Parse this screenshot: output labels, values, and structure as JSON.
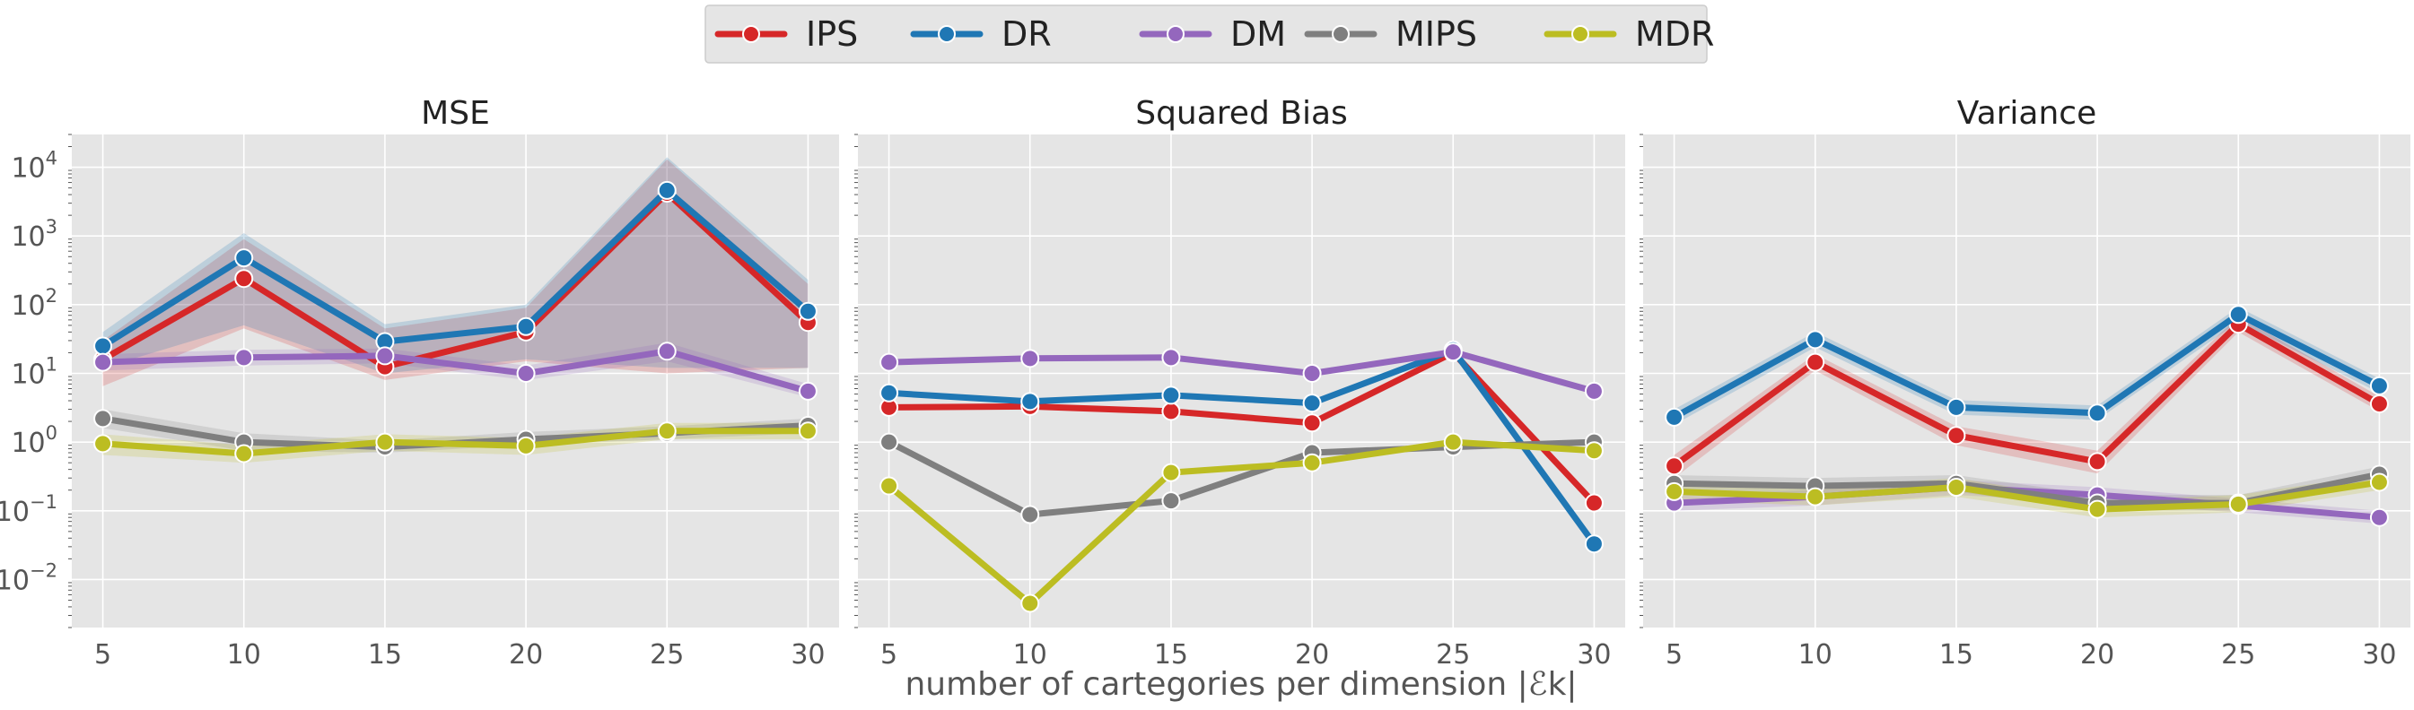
{
  "chart_data": {
    "type": "line",
    "x": [
      5,
      10,
      15,
      20,
      25,
      30
    ],
    "xlabel": "number of cartegories per dimension |ℰk|",
    "ylabel": "",
    "yscale": "log",
    "ylim": [
      0.002,
      30000
    ],
    "legend": {
      "placement": "top-center",
      "entries": [
        "IPS",
        "DR",
        "DM",
        "MIPS",
        "MDR"
      ]
    },
    "colors": {
      "IPS": "#d62728",
      "DR": "#1f77b4",
      "DM": "#9467bd",
      "MIPS": "#7f7f7f",
      "MDR": "#bcbd22",
      "background": "#e5e5e5",
      "grid": "#ffffff"
    },
    "panels": [
      {
        "title": "MSE",
        "ytick_labels": [
          {
            "base": "10",
            "exp": "−2",
            "value": 0.01
          },
          {
            "base": "10",
            "exp": "−1",
            "value": 0.1
          },
          {
            "base": "10",
            "exp": "0",
            "value": 1
          },
          {
            "base": "10",
            "exp": "1",
            "value": 10
          },
          {
            "base": "10",
            "exp": "2",
            "value": 100
          },
          {
            "base": "10",
            "exp": "3",
            "value": 1000
          },
          {
            "base": "10",
            "exp": "4",
            "value": 10000
          }
        ],
        "series": [
          {
            "name": "IPS",
            "values": [
              16,
              240,
              12.5,
              40,
              4200,
              55
            ],
            "lower": [
              6.5,
              45,
              8,
              15,
              10,
              12
            ],
            "upper": [
              30,
              900,
              45,
              90,
              13000,
              200
            ]
          },
          {
            "name": "DR",
            "values": [
              25,
              480,
              29,
              48,
              4600,
              80
            ],
            "lower": [
              12,
              50,
              10,
              16,
              12,
              12
            ],
            "upper": [
              40,
              1100,
              52,
              100,
              14000,
              230
            ]
          },
          {
            "name": "DM",
            "values": [
              14.5,
              17,
              18,
              10,
              21,
              5.5
            ],
            "lower": [
              11,
              13,
              14,
              8,
              15,
              4.5
            ],
            "upper": [
              19,
              22,
              23,
              13,
              28,
              7
            ]
          },
          {
            "name": "MIPS",
            "values": [
              2.2,
              1.0,
              0.85,
              1.1,
              1.35,
              1.75
            ],
            "lower": [
              1.6,
              0.75,
              0.7,
              0.9,
              1.1,
              1.35
            ],
            "upper": [
              3.0,
              1.35,
              1.05,
              1.4,
              1.7,
              2.2
            ]
          },
          {
            "name": "MDR",
            "values": [
              0.95,
              0.68,
              1.0,
              0.88,
              1.45,
              1.45
            ],
            "lower": [
              0.65,
              0.5,
              0.75,
              0.65,
              1.1,
              1.1
            ],
            "upper": [
              1.3,
              0.9,
              1.3,
              1.15,
              1.9,
              1.9
            ]
          }
        ]
      },
      {
        "title": "Squared Bias",
        "ytick_labels": [],
        "series": [
          {
            "name": "IPS",
            "values": [
              3.2,
              3.3,
              2.8,
              1.9,
              20,
              0.13
            ],
            "lower": null,
            "upper": null
          },
          {
            "name": "DR",
            "values": [
              5.2,
              3.9,
              4.8,
              3.7,
              22,
              0.033
            ],
            "lower": null,
            "upper": null
          },
          {
            "name": "DM",
            "values": [
              14.5,
              16.5,
              17,
              10,
              20.5,
              5.5
            ],
            "lower": null,
            "upper": null
          },
          {
            "name": "MIPS",
            "values": [
              1.0,
              0.088,
              0.14,
              0.7,
              0.85,
              1.0
            ],
            "lower": null,
            "upper": null
          },
          {
            "name": "MDR",
            "values": [
              0.23,
              0.0045,
              0.36,
              0.5,
              1.0,
              0.75
            ],
            "lower": null,
            "upper": null
          }
        ]
      },
      {
        "title": "Variance",
        "ytick_labels": [],
        "series": [
          {
            "name": "IPS",
            "values": [
              0.45,
              14.5,
              1.25,
              0.52,
              52,
              3.6
            ],
            "lower": [
              0.3,
              11,
              0.9,
              0.35,
              40,
              2.8
            ],
            "upper": [
              0.65,
              19,
              1.7,
              0.75,
              68,
              4.6
            ]
          },
          {
            "name": "DR",
            "values": [
              2.3,
              31,
              3.2,
              2.65,
              72,
              6.6
            ],
            "lower": [
              1.8,
              24,
              2.5,
              2.1,
              56,
              5.2
            ],
            "upper": [
              3.0,
              40,
              4.1,
              3.4,
              92,
              8.4
            ]
          },
          {
            "name": "DM",
            "values": [
              0.13,
              0.16,
              0.22,
              0.17,
              0.12,
              0.08
            ],
            "lower": [
              0.1,
              0.12,
              0.17,
              0.13,
              0.095,
              0.065
            ],
            "upper": [
              0.17,
              0.2,
              0.28,
              0.22,
              0.15,
              0.1
            ]
          },
          {
            "name": "MIPS",
            "values": [
              0.25,
              0.23,
              0.25,
              0.13,
              0.13,
              0.34
            ],
            "lower": [
              0.19,
              0.17,
              0.19,
              0.1,
              0.1,
              0.26
            ],
            "upper": [
              0.33,
              0.3,
              0.33,
              0.17,
              0.17,
              0.44
            ]
          },
          {
            "name": "MDR",
            "values": [
              0.19,
              0.16,
              0.22,
              0.105,
              0.125,
              0.26
            ],
            "lower": [
              0.14,
              0.12,
              0.16,
              0.08,
              0.095,
              0.2
            ],
            "upper": [
              0.26,
              0.21,
              0.3,
              0.14,
              0.17,
              0.34
            ]
          }
        ]
      }
    ]
  }
}
